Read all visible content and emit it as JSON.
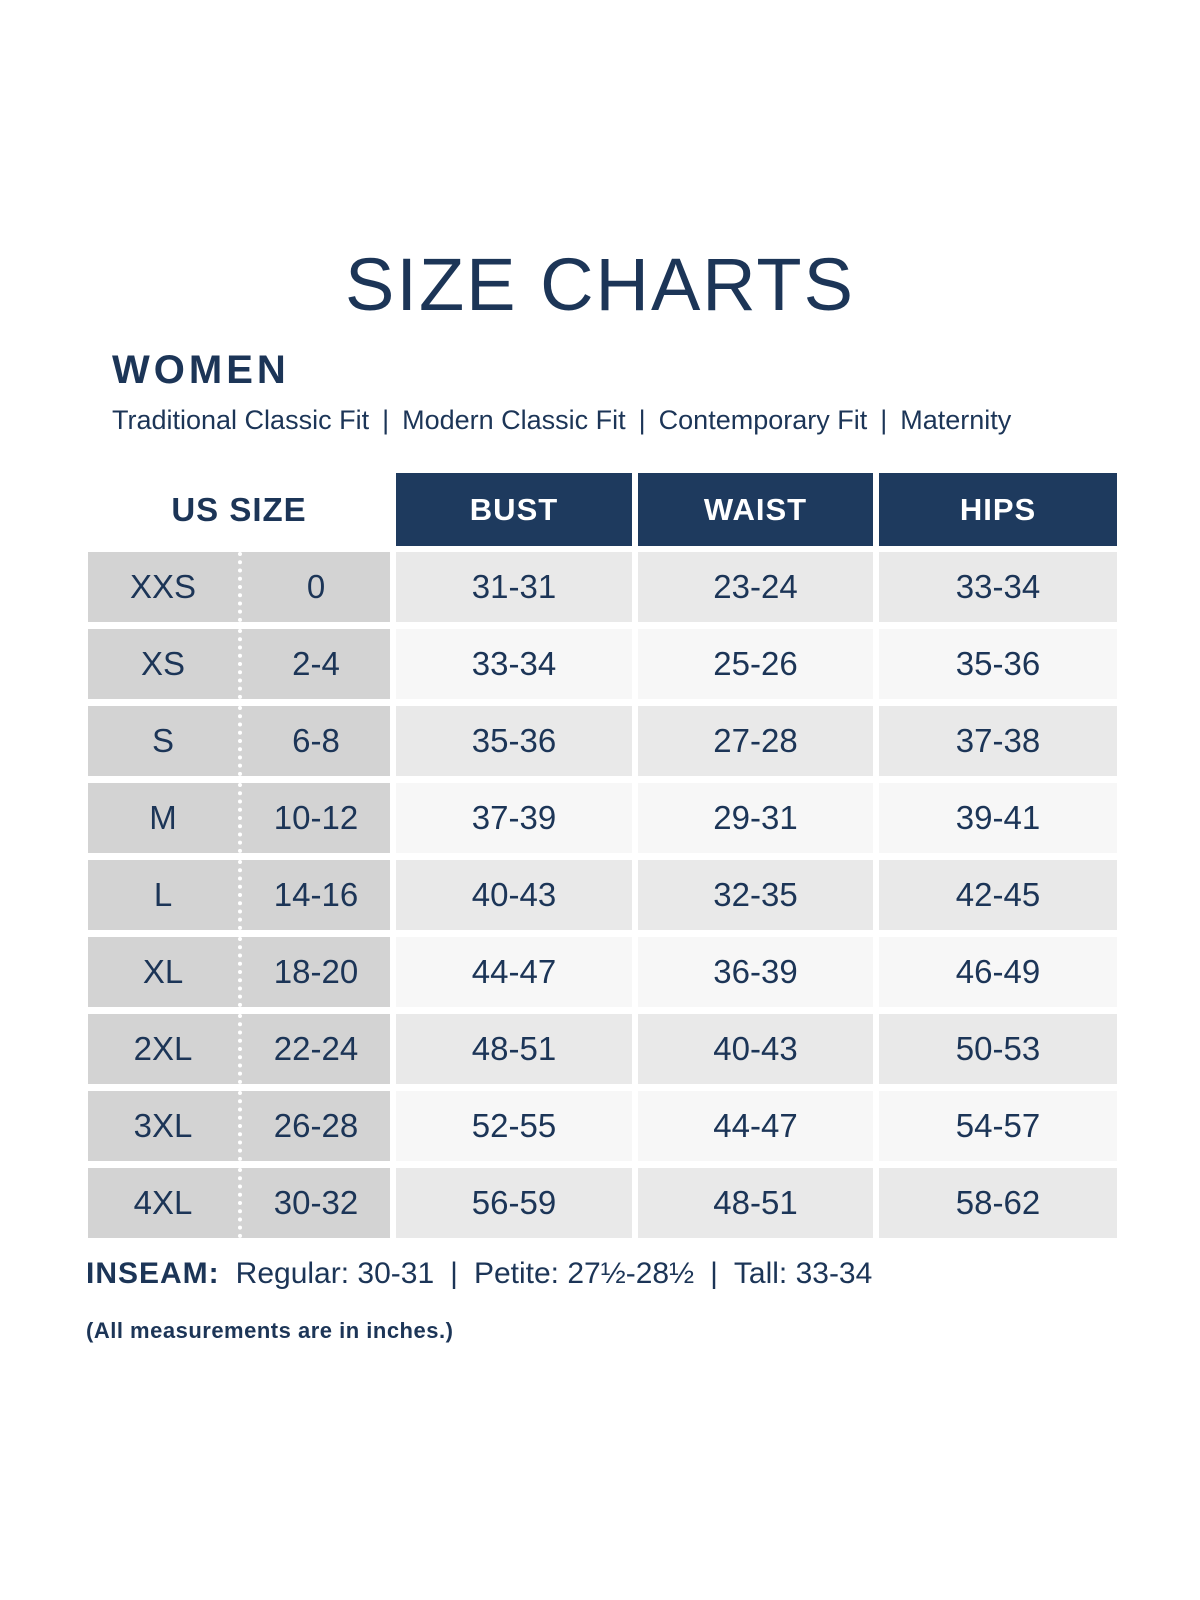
{
  "page": {
    "title": "SIZE CHARTS",
    "section_title": "WOMEN",
    "fit_separator": "|",
    "fit_types": [
      "Traditional Classic Fit",
      "Modern Classic Fit",
      "Contemporary Fit",
      "Maternity"
    ]
  },
  "table": {
    "us_size_header": "US SIZE",
    "columns": [
      "BUST",
      "WAIST",
      "HIPS"
    ],
    "rows": [
      {
        "size": "XXS",
        "us": "0",
        "bust": "31-31",
        "waist": "23-24",
        "hips": "33-34"
      },
      {
        "size": "XS",
        "us": "2-4",
        "bust": "33-34",
        "waist": "25-26",
        "hips": "35-36"
      },
      {
        "size": "S",
        "us": "6-8",
        "bust": "35-36",
        "waist": "27-28",
        "hips": "37-38"
      },
      {
        "size": "M",
        "us": "10-12",
        "bust": "37-39",
        "waist": "29-31",
        "hips": "39-41"
      },
      {
        "size": "L",
        "us": "14-16",
        "bust": "40-43",
        "waist": "32-35",
        "hips": "42-45"
      },
      {
        "size": "XL",
        "us": "18-20",
        "bust": "44-47",
        "waist": "36-39",
        "hips": "46-49"
      },
      {
        "size": "2XL",
        "us": "22-24",
        "bust": "48-51",
        "waist": "40-43",
        "hips": "50-53"
      },
      {
        "size": "3XL",
        "us": "26-28",
        "bust": "52-55",
        "waist": "44-47",
        "hips": "54-57"
      },
      {
        "size": "4XL",
        "us": "30-32",
        "bust": "56-59",
        "waist": "48-51",
        "hips": "58-62"
      }
    ]
  },
  "inseam": {
    "label": "INSEAM:",
    "separator": "|",
    "segments": [
      "Regular: 30-31",
      "Petite: 27½-28½",
      "Tall: 33-34"
    ]
  },
  "note": "(All measurements are in inches.)",
  "colors": {
    "navy_text": "#1c3557",
    "header_bg": "#1e3a5e",
    "size_col_bg": "#d3d3d3",
    "row_alt_bg": "#e9e9e9",
    "row_bg": "#f7f7f7"
  }
}
